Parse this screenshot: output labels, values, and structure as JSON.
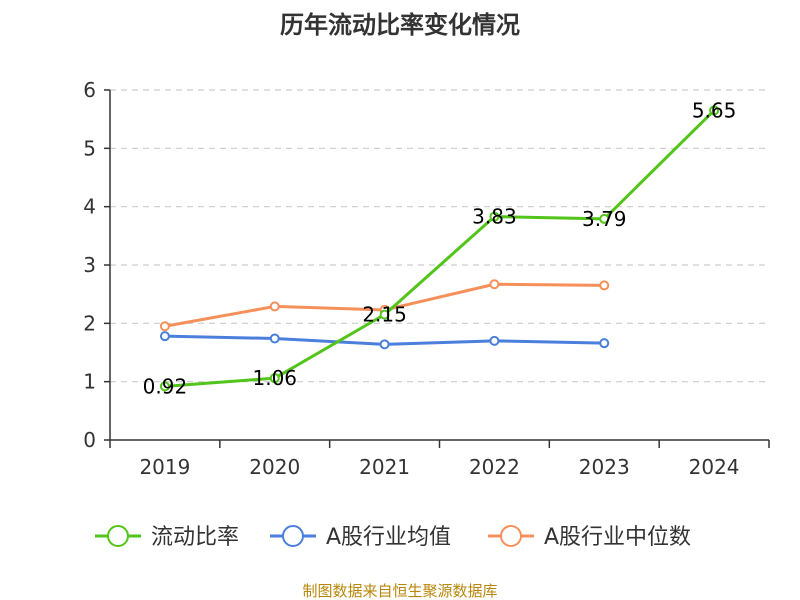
{
  "chart_data": {
    "type": "line",
    "title": "历年流动比率变化情况",
    "categories": [
      "2019",
      "2020",
      "2021",
      "2022",
      "2023",
      "2024"
    ],
    "ylim": [
      0,
      6
    ],
    "yticks": [
      "0",
      "1",
      "2",
      "3",
      "4",
      "5",
      "6"
    ],
    "grid": true,
    "legend_position": "bottom",
    "series": [
      {
        "name": "流动比率",
        "color": "#52c41a",
        "values": [
          0.92,
          1.06,
          2.15,
          3.83,
          3.79,
          5.65
        ],
        "labels": [
          "0.92",
          "1.06",
          "2.15",
          "3.83",
          "3.79",
          "5.65"
        ]
      },
      {
        "name": "A股行业均值",
        "color": "#4a7fdc",
        "values": [
          1.78,
          1.74,
          1.64,
          1.7,
          1.66,
          null
        ]
      },
      {
        "name": "A股行业中位数",
        "color": "#f5905a",
        "values": [
          1.95,
          2.29,
          2.23,
          2.67,
          2.65,
          null
        ]
      }
    ]
  },
  "source": "制图数据来自恒生聚源数据库"
}
